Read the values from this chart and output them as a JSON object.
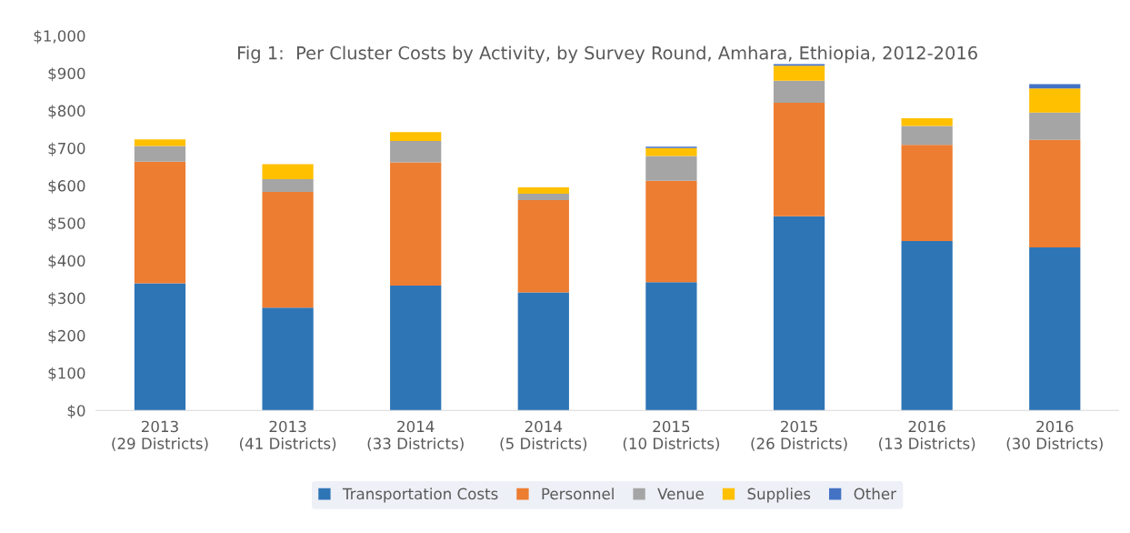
{
  "chart_data": {
    "type": "bar",
    "stacked": true,
    "title": "Fig 1:  Per Cluster Costs by Activity, by Survey Round, Amhara, Ethiopia, 2012-2016",
    "categories": [
      "2013\n(29 Districts)",
      "2013\n(41 Districts)",
      "2014\n(33 Districts)",
      "2014\n(5 Districts)",
      "2015\n(10 Districts)",
      "2015\n(26 Districts)",
      "2016\n(13 Districts)",
      "2016\n(30 Districts)"
    ],
    "series": [
      {
        "name": "Transportation Costs",
        "color": "#2e75b6",
        "values": [
          339,
          274,
          333,
          315,
          342,
          518,
          452,
          435
        ]
      },
      {
        "name": "Personnel",
        "color": "#ed7d31",
        "values": [
          325,
          309,
          329,
          246,
          271,
          303,
          257,
          287
        ]
      },
      {
        "name": "Venue",
        "color": "#a5a5a5",
        "values": [
          42,
          34,
          57,
          17,
          66,
          59,
          50,
          73
        ]
      },
      {
        "name": "Supplies",
        "color": "#ffc000",
        "values": [
          17,
          40,
          24,
          17,
          21,
          40,
          21,
          64
        ]
      },
      {
        "name": "Other",
        "color": "#4472c4",
        "values": [
          null,
          0,
          0,
          0,
          4,
          4,
          0,
          12
        ]
      }
    ],
    "ylim": [
      0,
      1000
    ],
    "yticks": [
      {
        "value": 0,
        "label": "$0"
      },
      {
        "value": 100,
        "label": "$100"
      },
      {
        "value": 200,
        "label": "$200"
      },
      {
        "value": 300,
        "label": "$300"
      },
      {
        "value": 400,
        "label": "$400"
      },
      {
        "value": 500,
        "label": "$500"
      },
      {
        "value": 600,
        "label": "$600"
      },
      {
        "value": 700,
        "label": "$700"
      },
      {
        "value": 800,
        "label": "$800"
      },
      {
        "value": 900,
        "label": "$900"
      },
      {
        "value": 1000,
        "label": "$1,000"
      }
    ],
    "grid": false,
    "legend": "bottom"
  }
}
